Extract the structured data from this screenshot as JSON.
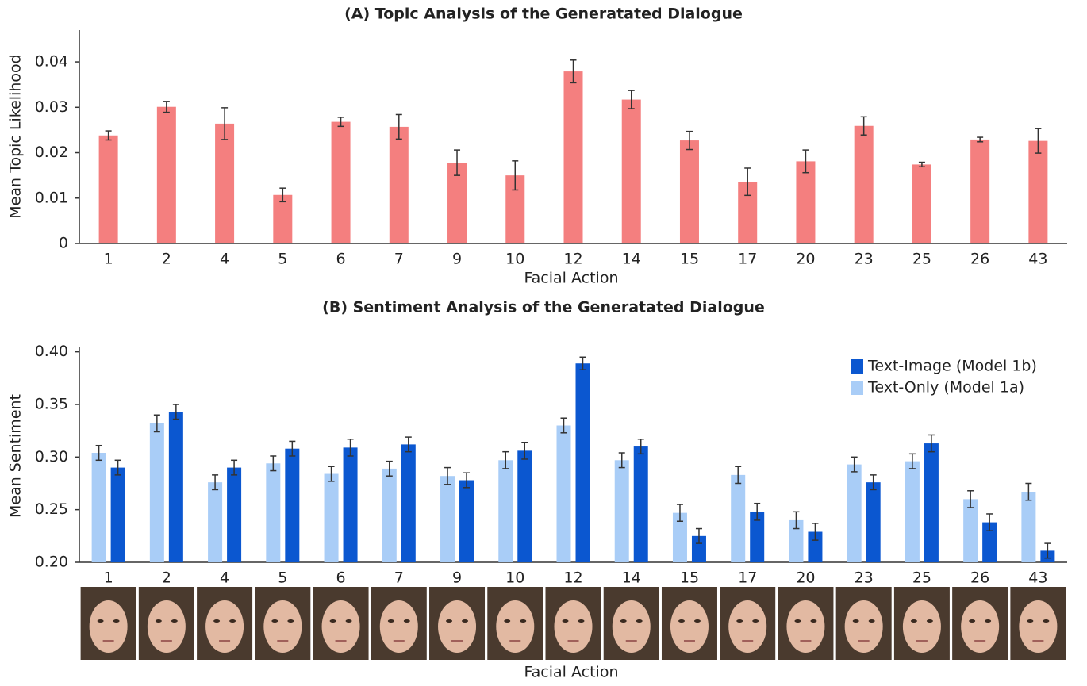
{
  "chart_data": [
    {
      "type": "bar",
      "title": "(A) Topic Analysis of the Generatated Dialogue",
      "x_label": "Facial Action",
      "y_label": "Mean Topic Likelihood",
      "categories": [
        "1",
        "2",
        "4",
        "5",
        "6",
        "7",
        "9",
        "10",
        "12",
        "14",
        "15",
        "17",
        "20",
        "23",
        "25",
        "26",
        "43"
      ],
      "values": [
        0.0238,
        0.0301,
        0.0264,
        0.0107,
        0.0268,
        0.0257,
        0.0178,
        0.015,
        0.0379,
        0.0317,
        0.0227,
        0.0136,
        0.0181,
        0.0259,
        0.0174,
        0.0229,
        0.0226
      ],
      "errors": [
        0.001,
        0.0012,
        0.0035,
        0.0015,
        0.001,
        0.0027,
        0.0028,
        0.0032,
        0.0025,
        0.002,
        0.002,
        0.003,
        0.0025,
        0.002,
        0.0005,
        0.0005,
        0.0027
      ],
      "color": "#f47f7f",
      "ylim": [
        0,
        0.047
      ],
      "yticks": [
        0,
        0.01,
        0.02,
        0.03,
        0.04
      ]
    },
    {
      "type": "grouped-bar",
      "title": "(B) Sentiment Analysis of the Generatated Dialogue",
      "x_label": "Facial Action",
      "y_label": "Mean Sentiment",
      "categories": [
        "1",
        "2",
        "4",
        "5",
        "6",
        "7",
        "9",
        "10",
        "12",
        "14",
        "15",
        "17",
        "20",
        "23",
        "25",
        "26",
        "43"
      ],
      "series": [
        {
          "name": "Text-Only (Model 1a)",
          "color": "#a9cdf7",
          "values": [
            0.304,
            0.332,
            0.276,
            0.294,
            0.284,
            0.289,
            0.282,
            0.297,
            0.33,
            0.297,
            0.247,
            0.283,
            0.24,
            0.293,
            0.296,
            0.26,
            0.267
          ],
          "errors": [
            0.007,
            0.008,
            0.007,
            0.007,
            0.007,
            0.007,
            0.008,
            0.008,
            0.007,
            0.007,
            0.008,
            0.008,
            0.008,
            0.007,
            0.007,
            0.008,
            0.008
          ]
        },
        {
          "name": "Text-Image (Model 1b)",
          "color": "#0b57d0",
          "values": [
            0.29,
            0.343,
            0.29,
            0.308,
            0.309,
            0.312,
            0.278,
            0.306,
            0.389,
            0.31,
            0.225,
            0.248,
            0.229,
            0.276,
            0.313,
            0.238,
            0.211
          ],
          "errors": [
            0.007,
            0.007,
            0.007,
            0.007,
            0.008,
            0.007,
            0.007,
            0.008,
            0.006,
            0.007,
            0.007,
            0.008,
            0.008,
            0.007,
            0.008,
            0.008,
            0.007
          ]
        }
      ],
      "ylim": [
        0.2,
        0.405
      ],
      "yticks": [
        {
          "value": 0.2,
          "label": "0.20"
        },
        0.25,
        {
          "value": 0.3,
          "label": "0.30"
        },
        0.35,
        {
          "value": 0.4,
          "label": "0.40"
        }
      ],
      "legend": "upper right"
    }
  ]
}
